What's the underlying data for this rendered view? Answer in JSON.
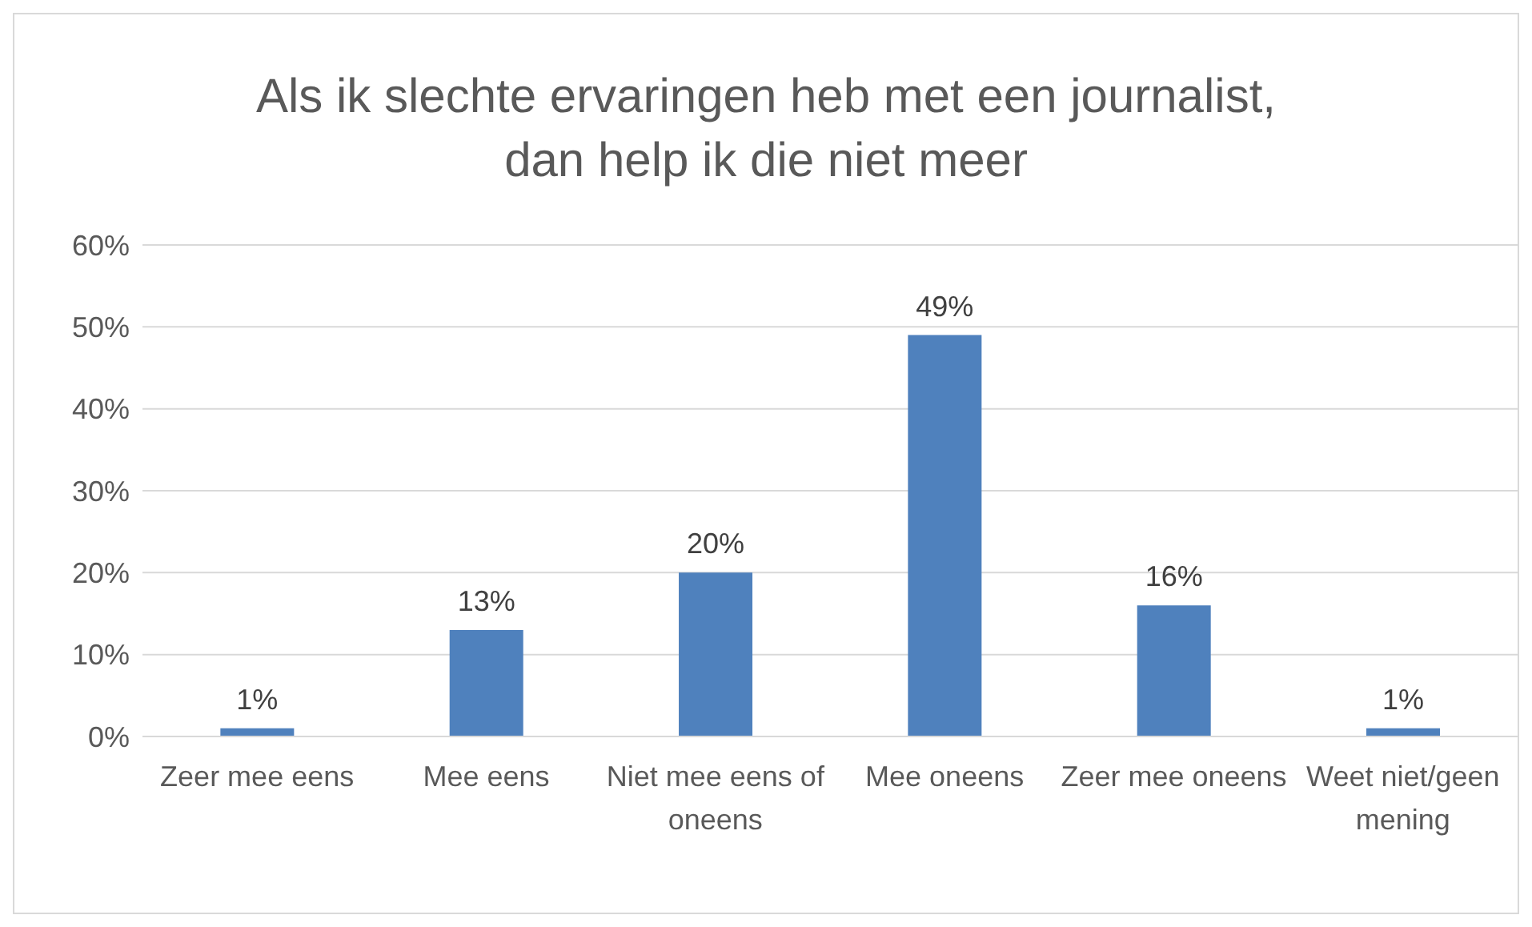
{
  "chart_data": {
    "type": "bar",
    "title": "Als ik slechte ervaringen heb met een journalist, dan help ik die niet meer",
    "categories": [
      "Zeer mee eens",
      "Mee eens",
      "Niet mee eens of oneens",
      "Mee oneens",
      "Zeer mee oneens",
      "Weet niet/geen mening"
    ],
    "values": [
      1,
      13,
      20,
      49,
      16,
      1
    ],
    "value_labels": [
      "1%",
      "13%",
      "20%",
      "49%",
      "16%",
      "1%"
    ],
    "color": "#4f81bd",
    "ylim": [
      0,
      60
    ],
    "yticks": [
      {
        "value": 0,
        "label": "0%"
      },
      {
        "value": 10,
        "label": "10%"
      },
      {
        "value": 20,
        "label": "20%"
      },
      {
        "value": 30,
        "label": "30%"
      },
      {
        "value": 40,
        "label": "40%"
      },
      {
        "value": 50,
        "label": "50%"
      },
      {
        "value": 60,
        "label": "60%"
      }
    ],
    "grid": "y"
  }
}
